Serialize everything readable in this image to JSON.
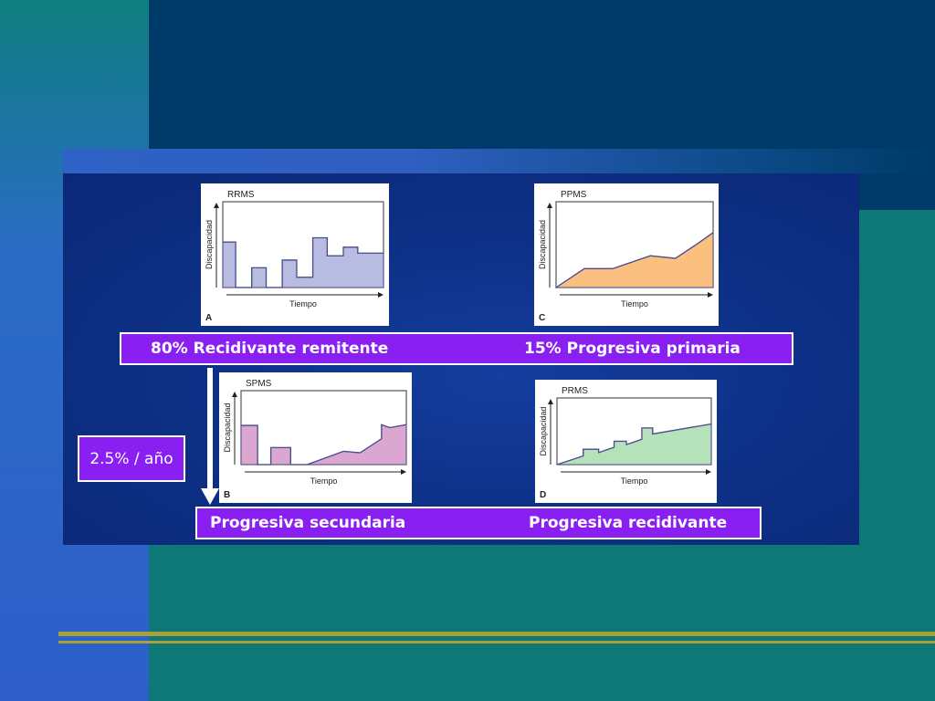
{
  "labels": {
    "row1_left": "80% Recidivante remitente",
    "row1_right": "15% Progresiva primaria",
    "row2_left": "Progresiva secundaria",
    "row2_right": "Progresiva recidivante",
    "rate": "2.5% / año"
  },
  "colors": {
    "slide_background": "#0e7877",
    "panel": "#0d2f84",
    "label_bar": "#8a1ff2",
    "accent_lines": "#a9a039"
  },
  "chart_data": [
    {
      "type": "area",
      "title": "RRMS",
      "panel_letter": "A",
      "xlabel": "Tiempo",
      "ylabel": "Discapacidad",
      "fill": "#b7bce0",
      "stroke": "#4b4f8c",
      "xlim": [
        0,
        100
      ],
      "ylim": [
        0,
        10
      ],
      "x": [
        0,
        8,
        8,
        18,
        18,
        27,
        27,
        37,
        37,
        46,
        46,
        56,
        56,
        65,
        65,
        75,
        75,
        84,
        84,
        100
      ],
      "y": [
        5.3,
        5.3,
        0,
        0,
        2.3,
        2.3,
        0,
        0,
        3.2,
        3.2,
        1.2,
        1.2,
        5.8,
        5.8,
        3.7,
        3.7,
        4.7,
        4.7,
        4.0,
        4.0
      ]
    },
    {
      "type": "area",
      "title": "PPMS",
      "panel_letter": "C",
      "xlabel": "Tiempo",
      "ylabel": "Discapacidad",
      "fill": "#fbc07f",
      "stroke": "#4b4f8c",
      "xlim": [
        0,
        100
      ],
      "ylim": [
        0,
        10
      ],
      "x": [
        0,
        18,
        36,
        60,
        76,
        90,
        100
      ],
      "y": [
        0,
        2.2,
        2.2,
        3.7,
        3.4,
        5.1,
        6.4
      ]
    },
    {
      "type": "area",
      "title": "SPMS",
      "panel_letter": "B",
      "xlabel": "Tiempo",
      "ylabel": "Discapacidad",
      "fill": "#dba6cf",
      "stroke": "#4b4f8c",
      "xlim": [
        0,
        100
      ],
      "ylim": [
        0,
        10
      ],
      "x": [
        0,
        10,
        10,
        18,
        18,
        30,
        30,
        40,
        62,
        72,
        85,
        85,
        90,
        100
      ],
      "y": [
        5.3,
        5.3,
        0,
        0,
        2.3,
        2.3,
        0,
        0,
        1.8,
        1.6,
        3.5,
        5.4,
        5.0,
        5.4
      ]
    },
    {
      "type": "area",
      "title": "PRMS",
      "panel_letter": "D",
      "xlabel": "Tiempo",
      "ylabel": "Discapacidad",
      "fill": "#b6e2bb",
      "stroke": "#4b4f8c",
      "xlim": [
        0,
        100
      ],
      "ylim": [
        0,
        10
      ],
      "x": [
        0,
        17,
        17,
        27,
        27,
        37,
        37,
        45,
        45,
        55,
        55,
        62,
        62,
        100
      ],
      "y": [
        0,
        1.3,
        2.3,
        2.3,
        1.8,
        2.6,
        3.5,
        3.5,
        3.0,
        3.8,
        5.5,
        5.5,
        4.6,
        6.1
      ]
    }
  ]
}
